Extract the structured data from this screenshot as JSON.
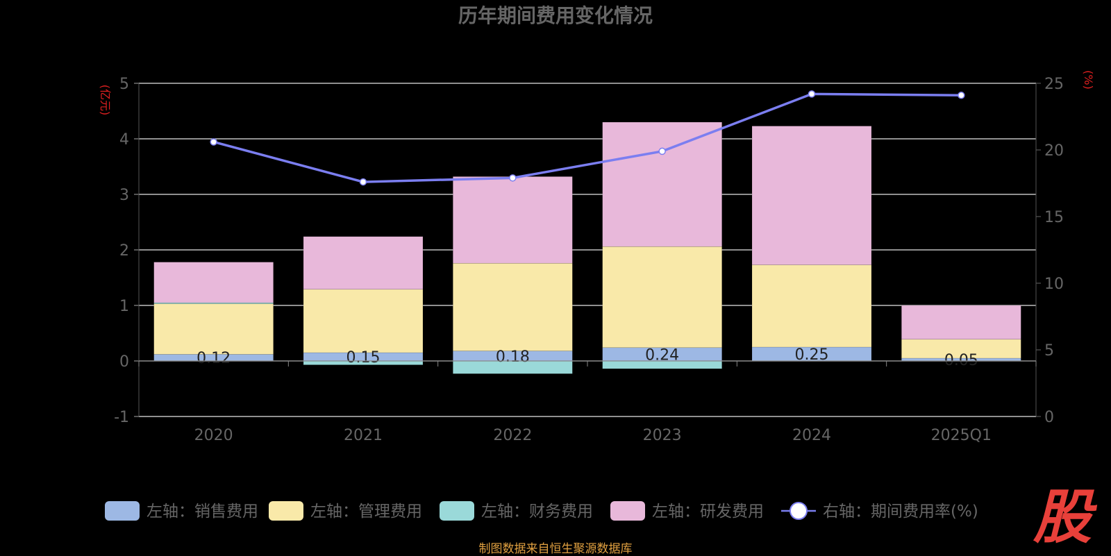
{
  "chart_data": {
    "type": "bar",
    "title": "历年期间费用变化情况",
    "y_left_label": "(亿元)",
    "y_right_label": "(%)",
    "categories": [
      "2020",
      "2021",
      "2022",
      "2023",
      "2024",
      "2025Q1"
    ],
    "y_left_ticks": [
      "-1",
      "0",
      "1",
      "2",
      "3",
      "4",
      "5"
    ],
    "y_right_ticks": [
      "0",
      "5",
      "10",
      "15",
      "20",
      "25"
    ],
    "ylim_left": [
      -1,
      5
    ],
    "ylim_right": [
      0,
      25
    ],
    "grid": true,
    "legend_position": "bottom",
    "series": [
      {
        "name": "左轴：销售费用",
        "type": "bar",
        "stack": "expense",
        "axis": "left",
        "color": "#9db8e4",
        "values": [
          0.12,
          0.15,
          0.18,
          0.24,
          0.25,
          0.05
        ],
        "labels": [
          "0.12",
          "0.15",
          "0.18",
          "0.24",
          "0.25",
          "0.05"
        ]
      },
      {
        "name": "左轴：管理费用",
        "type": "bar",
        "stack": "expense",
        "axis": "left",
        "color": "#f9e9a9",
        "values": [
          0.91,
          1.14,
          1.58,
          1.82,
          1.48,
          0.34
        ]
      },
      {
        "name": "左轴：财务费用",
        "type": "bar",
        "stack": "expense",
        "axis": "left",
        "color": "#9ad9d9",
        "values": [
          0.02,
          -0.07,
          -0.23,
          -0.14,
          0.0,
          0.0
        ]
      },
      {
        "name": "左轴：研发费用",
        "type": "bar",
        "stack": "expense",
        "axis": "left",
        "color": "#e8b8da",
        "values": [
          0.73,
          0.95,
          1.56,
          2.24,
          2.5,
          0.61
        ]
      },
      {
        "name": "右轴：期间费用率(%)",
        "type": "line",
        "axis": "right",
        "color": "#7b7ef0",
        "values": [
          20.6,
          17.6,
          17.9,
          19.9,
          24.2,
          24.1
        ]
      }
    ]
  },
  "footer": {
    "source": "制图数据来自恒生聚源数据库"
  },
  "logo": {
    "text": "股"
  }
}
